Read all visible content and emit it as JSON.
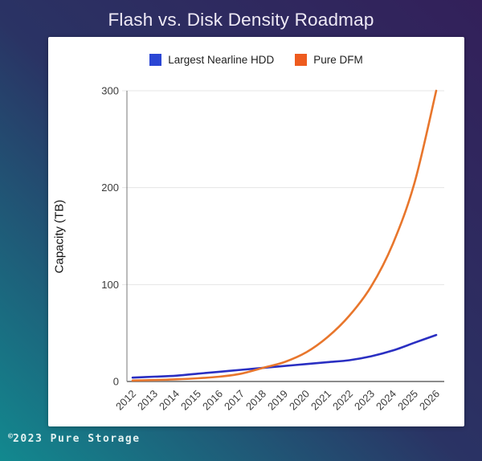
{
  "page": {
    "title": "Flash vs. Disk Density Roadmap",
    "background_colors": {
      "bottom_left": "#12898F",
      "middle": "#2A3364",
      "top_right": "#33205A"
    },
    "card_color": "#FFFFFF"
  },
  "footer": {
    "symbol": "©",
    "text": "2023 Pure Storage"
  },
  "chart_data": {
    "type": "line",
    "title": "Flash vs. Disk Density Roadmap",
    "xlabel": "",
    "ylabel": "Capacity (TB)",
    "ylim": [
      0,
      300
    ],
    "yticks": [
      0,
      100,
      200,
      300
    ],
    "grid": "horizontal",
    "legend_position": "top",
    "categories": [
      "2012",
      "2013",
      "2014",
      "2015",
      "2016",
      "2017",
      "2018",
      "2019",
      "2020",
      "2021",
      "2022",
      "2023",
      "2024",
      "2025",
      "2026"
    ],
    "series": [
      {
        "name": "Largest Nearline HDD",
        "color": "#2B46D4",
        "line_color": "#2A2FC2",
        "values": [
          4,
          5,
          6,
          8,
          10,
          12,
          14,
          16,
          18,
          20,
          22,
          26,
          32,
          40,
          48
        ]
      },
      {
        "name": "Pure DFM",
        "color": "#EE5B1E",
        "line_color": "#E8762C",
        "values": [
          1,
          1.5,
          2.2,
          3.3,
          5,
          8,
          14,
          20,
          30,
          46,
          68,
          98,
          142,
          205,
          300
        ]
      }
    ],
    "axis_colors": {
      "gridline": "#E4E4E4",
      "axis_line": "#777777",
      "baseline": "#8C8C8C",
      "tick_text": "#3C3C3C"
    }
  }
}
